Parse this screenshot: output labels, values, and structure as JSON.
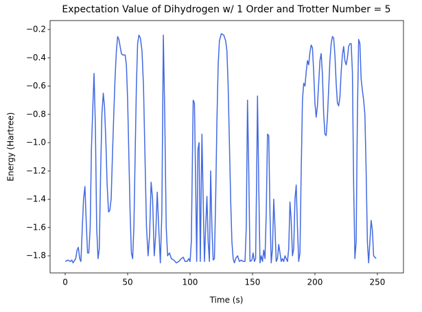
{
  "chart_data": {
    "type": "line",
    "title": "Expectation Value of Dihydrogen w/ 1 Order and Trotter Number = 5",
    "x_label": "Time (s)",
    "y_label": "Energy (Hartree)",
    "color": "#4169e1",
    "xlim": [
      -12.1,
      270.9
    ],
    "ylim": [
      -1.921,
      -0.137
    ],
    "xticks": [
      0,
      50,
      100,
      150,
      200,
      250
    ],
    "yticks": [
      {
        "value": -1.8,
        "label": "−1.8"
      },
      {
        "value": -1.6,
        "label": "−1.6"
      },
      {
        "value": -1.4,
        "label": "−1.4"
      },
      {
        "value": -1.2,
        "label": "−1.2"
      },
      {
        "value": -1.0,
        "label": "−1.0"
      },
      {
        "value": -0.8,
        "label": "−0.8"
      },
      {
        "value": -0.6,
        "label": "−0.6"
      },
      {
        "value": -0.4,
        "label": "−0.4"
      },
      {
        "value": -0.2,
        "label": "−0.2"
      }
    ],
    "x": [
      0,
      2.1,
      4.2,
      5.3,
      6.3,
      8.4,
      9.5,
      10.5,
      11.6,
      12.6,
      13.7,
      14.7,
      15.8,
      16.8,
      17.9,
      18.9,
      20,
      21,
      22.1,
      23.1,
      24.2,
      25.2,
      26.3,
      27.3,
      28.4,
      29.4,
      30.5,
      31.5,
      32.6,
      33.6,
      34.7,
      35.7,
      36.8,
      37.8,
      38.9,
      39.9,
      41,
      42,
      43,
      44,
      45,
      46,
      48,
      49,
      50,
      51,
      52,
      53,
      54,
      55,
      56,
      57,
      58,
      59,
      60.2,
      61.5,
      62.7,
      63.9,
      65.1,
      66.4,
      67.6,
      68.8,
      70,
      71.3,
      72.5,
      73.7,
      74.9,
      76.2,
      77.4,
      78.6,
      79.7,
      80.9,
      82,
      83.5,
      85,
      87,
      89,
      91,
      93,
      94.5,
      96,
      97.5,
      99,
      100,
      101,
      102.5,
      103.5,
      104.5,
      105.3,
      106.3,
      107.2,
      108.2,
      109.5,
      110.5,
      111.5,
      112.5,
      113.5,
      114.5,
      115.5,
      116.5,
      117.5,
      118.5,
      119.5,
      120.5,
      121.5,
      122.5,
      123.5,
      125,
      127,
      128.5,
      129.5,
      130.5,
      131.5,
      132.5,
      133.5,
      134.5,
      135.5,
      136.5,
      138,
      139.5,
      141,
      142.5,
      144,
      145,
      146,
      147,
      148,
      149.5,
      150.5,
      151.5,
      152.5,
      153.5,
      154,
      155,
      156,
      157,
      158,
      159,
      160,
      161,
      162,
      163,
      164,
      165,
      166,
      167,
      168,
      169,
      170,
      171,
      172,
      173,
      174,
      175,
      176,
      177,
      178,
      179,
      180,
      181,
      182,
      183,
      184,
      185,
      186,
      187,
      188,
      189,
      190,
      191,
      192,
      193,
      194,
      195,
      196,
      197,
      198,
      199,
      200,
      201,
      202,
      203,
      204,
      205,
      206,
      207,
      208,
      209,
      210,
      211,
      212,
      213,
      214,
      215,
      216,
      217,
      218,
      219,
      220,
      221,
      222,
      223,
      224,
      225,
      226,
      227,
      228,
      229,
      230,
      231,
      232,
      233,
      234,
      235,
      236,
      237,
      238,
      239,
      240,
      241,
      242,
      243,
      244,
      245,
      246,
      247,
      249
    ],
    "values": [
      -1.84,
      -1.83,
      -1.84,
      -1.83,
      -1.85,
      -1.82,
      -1.76,
      -1.74,
      -1.82,
      -1.84,
      -1.6,
      -1.4,
      -1.31,
      -1.55,
      -1.78,
      -1.78,
      -1.6,
      -1.05,
      -0.75,
      -0.51,
      -0.9,
      -1.6,
      -1.82,
      -1.75,
      -1.2,
      -0.8,
      -0.65,
      -0.75,
      -1.0,
      -1.3,
      -1.49,
      -1.48,
      -1.4,
      -1.1,
      -0.8,
      -0.55,
      -0.35,
      -0.25,
      -0.27,
      -0.32,
      -0.37,
      -0.38,
      -0.38,
      -0.45,
      -0.7,
      -1.1,
      -1.5,
      -1.78,
      -1.82,
      -1.6,
      -1.1,
      -0.6,
      -0.3,
      -0.24,
      -0.26,
      -0.35,
      -0.6,
      -1.1,
      -1.6,
      -1.8,
      -1.65,
      -1.28,
      -1.4,
      -1.8,
      -1.65,
      -1.35,
      -1.6,
      -1.85,
      -1.5,
      -0.24,
      -0.8,
      -1.6,
      -1.8,
      -1.78,
      -1.82,
      -1.83,
      -1.85,
      -1.84,
      -1.82,
      -1.81,
      -1.84,
      -1.84,
      -1.82,
      -1.84,
      -1.7,
      -0.7,
      -0.72,
      -1.3,
      -1.84,
      -1.05,
      -1.0,
      -1.84,
      -0.94,
      -1.4,
      -1.84,
      -1.6,
      -1.38,
      -1.7,
      -1.84,
      -1.2,
      -1.6,
      -1.83,
      -1.82,
      -1.4,
      -0.85,
      -0.45,
      -0.28,
      -0.23,
      -0.24,
      -0.28,
      -0.35,
      -0.6,
      -1.0,
      -1.4,
      -1.7,
      -1.82,
      -1.85,
      -1.82,
      -1.8,
      -1.84,
      -1.83,
      -1.84,
      -1.84,
      -1.6,
      -0.7,
      -1.2,
      -1.84,
      -1.83,
      -1.78,
      -1.84,
      -1.82,
      -1.1,
      -0.67,
      -1.3,
      -1.85,
      -1.8,
      -1.84,
      -1.76,
      -1.82,
      -1.5,
      -0.94,
      -0.95,
      -1.5,
      -1.85,
      -1.75,
      -1.4,
      -1.6,
      -1.84,
      -1.82,
      -1.72,
      -1.78,
      -1.84,
      -1.82,
      -1.84,
      -1.8,
      -1.82,
      -1.84,
      -1.75,
      -1.42,
      -1.55,
      -1.8,
      -1.75,
      -1.4,
      -1.3,
      -1.6,
      -1.84,
      -1.78,
      -1.2,
      -0.7,
      -0.58,
      -0.6,
      -0.5,
      -0.42,
      -0.45,
      -0.36,
      -0.31,
      -0.33,
      -0.5,
      -0.72,
      -0.82,
      -0.74,
      -0.58,
      -0.42,
      -0.37,
      -0.52,
      -0.8,
      -0.94,
      -0.95,
      -0.82,
      -0.62,
      -0.42,
      -0.3,
      -0.25,
      -0.26,
      -0.38,
      -0.58,
      -0.72,
      -0.74,
      -0.68,
      -0.5,
      -0.38,
      -0.32,
      -0.42,
      -0.45,
      -0.4,
      -0.32,
      -0.3,
      -0.3,
      -0.5,
      -1.3,
      -1.82,
      -1.7,
      -0.8,
      -0.27,
      -0.3,
      -0.55,
      -0.63,
      -0.7,
      -0.8,
      -1.2,
      -1.7,
      -1.85,
      -1.7,
      -1.55,
      -1.62,
      -1.8,
      -1.82
    ]
  }
}
